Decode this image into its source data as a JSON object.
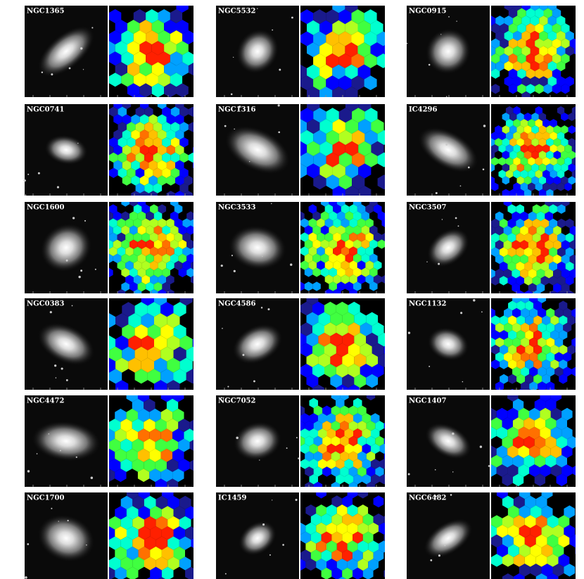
{
  "panels": [
    {
      "name": "NGC1365"
    },
    {
      "name": "NGC5532"
    },
    {
      "name": "NGC0915"
    },
    {
      "name": "NGC0741"
    },
    {
      "name": "NGC1316"
    },
    {
      "name": "IC4296"
    },
    {
      "name": "NGC1600"
    },
    {
      "name": "NGC3533"
    },
    {
      "name": "NGC3507"
    },
    {
      "name": "NGC0383"
    },
    {
      "name": "NGC4586"
    },
    {
      "name": "NGC1132"
    },
    {
      "name": "NGC4472"
    },
    {
      "name": "NGC7052"
    },
    {
      "name": "NGC1407"
    },
    {
      "name": "NGC1700"
    },
    {
      "name": "IC1459"
    },
    {
      "name": "NGC6482"
    }
  ]
}
